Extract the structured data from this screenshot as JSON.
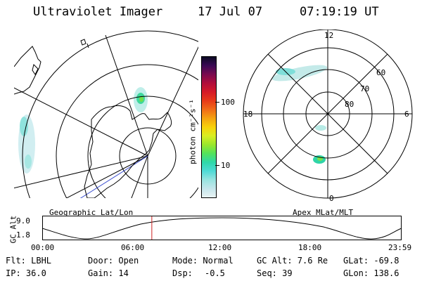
{
  "header": {
    "instrument": "Ultraviolet Imager",
    "date": "17 Jul 07",
    "time": "07:19:19 UT"
  },
  "colorbar": {
    "unit_label": "photon cm⁻²s⁻¹",
    "ticks": [
      "100",
      "10"
    ],
    "scale": "log",
    "colors": [
      "#e9f3f3",
      "#c5e6ec",
      "#98e4e0",
      "#4fdad6",
      "#2fd8a9",
      "#53e35c",
      "#9ae72c",
      "#d8ee22",
      "#f8d20a",
      "#f4a311",
      "#f06c18",
      "#e73a19",
      "#d51a28",
      "#b10d3b",
      "#7a0a4f",
      "#3b0955",
      "#0a0a23"
    ]
  },
  "geo_panel": {
    "caption": "Geographic Lat/Lon"
  },
  "apex_panel": {
    "caption": "Apex MLat/MLT",
    "mlt_labels": {
      "top": "12",
      "left": "18",
      "right": "6",
      "bottom": "0"
    },
    "mlat_labels": [
      "60",
      "70",
      "80"
    ]
  },
  "altitude_plot": {
    "ylabel": "GC Alt",
    "ymax": "9.0",
    "ymin": "1.8",
    "xticks": [
      "00:00",
      "06:00",
      "12:00",
      "18:00",
      "23:59"
    ],
    "current_time_fraction": 0.305,
    "marker_color": "#cc2020"
  },
  "info": {
    "flt": "Flt: LBHL",
    "ip": "IP: 36.0",
    "door": "Door: Open",
    "gain": "Gain: 14",
    "mode": "Mode: Normal",
    "dsp_label": "Dsp:",
    "dsp_value": "-0.5",
    "gc_alt": "GC Alt: 7.6 Re",
    "seq": "Seq: 39",
    "glat": "GLat: -69.8",
    "glon": "GLon: 138.6"
  }
}
